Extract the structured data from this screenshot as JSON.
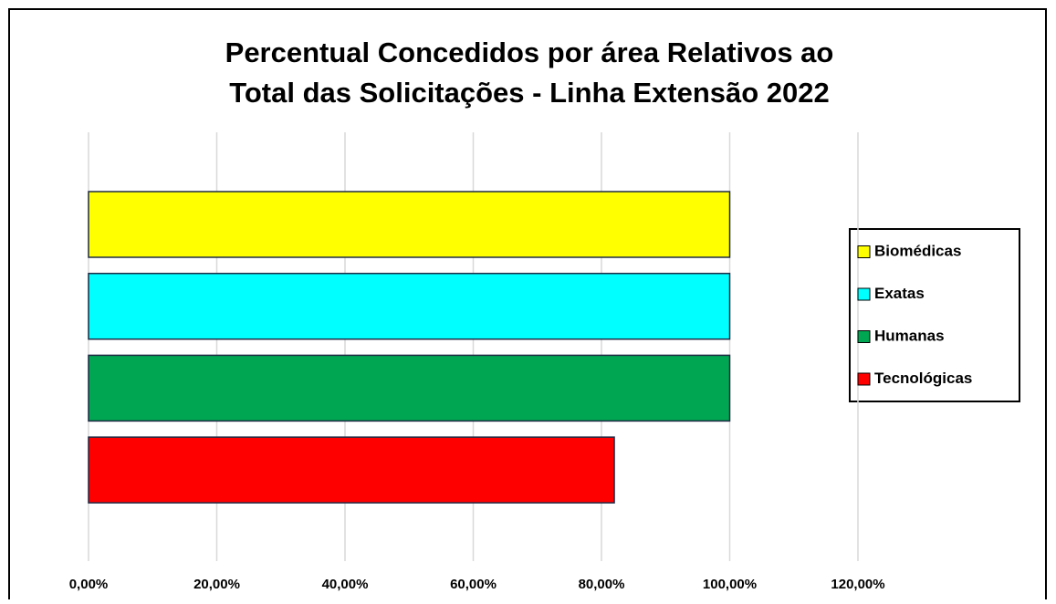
{
  "chart_data": {
    "type": "bar",
    "orientation": "horizontal",
    "title": [
      "Percentual Concedidos por área Relativos ao",
      "Total das Solicitações - Linha Extensão 2022"
    ],
    "series": [
      {
        "name": "Biomédicas",
        "color": "#ffff00",
        "values": [
          100
        ]
      },
      {
        "name": "Exatas",
        "color": "#00ffff",
        "values": [
          100
        ]
      },
      {
        "name": "Humanas",
        "color": "#00a651",
        "values": [
          100
        ]
      },
      {
        "name": "Tecnológicas",
        "color": "#ff0000",
        "values": [
          82
        ]
      }
    ],
    "xlim": [
      0,
      120
    ],
    "xticks": [
      {
        "value": 0,
        "label": "0,00%"
      },
      {
        "value": 20,
        "label": "20,00%"
      },
      {
        "value": 40,
        "label": "40,00%"
      },
      {
        "value": 60,
        "label": "60,00%"
      },
      {
        "value": 80,
        "label": "80,00%"
      },
      {
        "value": 100,
        "label": "100,00%"
      },
      {
        "value": 120,
        "label": "120,00%"
      }
    ],
    "grid": true,
    "legend": "right"
  }
}
